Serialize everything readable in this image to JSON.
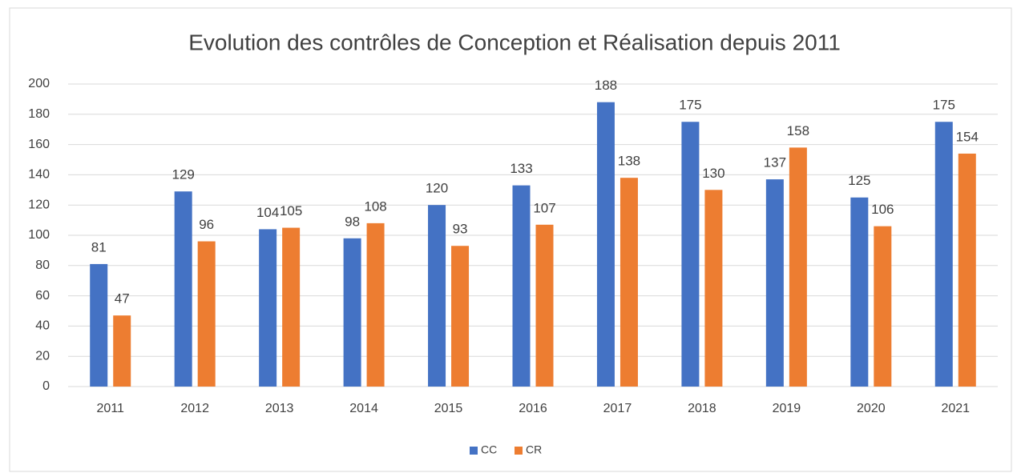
{
  "chart_data": {
    "type": "bar",
    "title": "Evolution des contrôles de Conception et Réalisation depuis 2011",
    "categories": [
      "2011",
      "2012",
      "2013",
      "2014",
      "2015",
      "2016",
      "2017",
      "2018",
      "2019",
      "2020",
      "2021"
    ],
    "series": [
      {
        "name": "CC",
        "color": "#4472c4",
        "values": [
          81,
          129,
          104,
          98,
          120,
          133,
          188,
          175,
          137,
          125,
          175
        ]
      },
      {
        "name": "CR",
        "color": "#ed7d31",
        "values": [
          47,
          96,
          105,
          108,
          93,
          107,
          138,
          130,
          158,
          106,
          154
        ]
      }
    ],
    "ylim": [
      0,
      200
    ],
    "yticks": [
      0,
      20,
      40,
      60,
      80,
      100,
      120,
      140,
      160,
      180,
      200
    ],
    "grid": true,
    "legend": "bottom"
  }
}
